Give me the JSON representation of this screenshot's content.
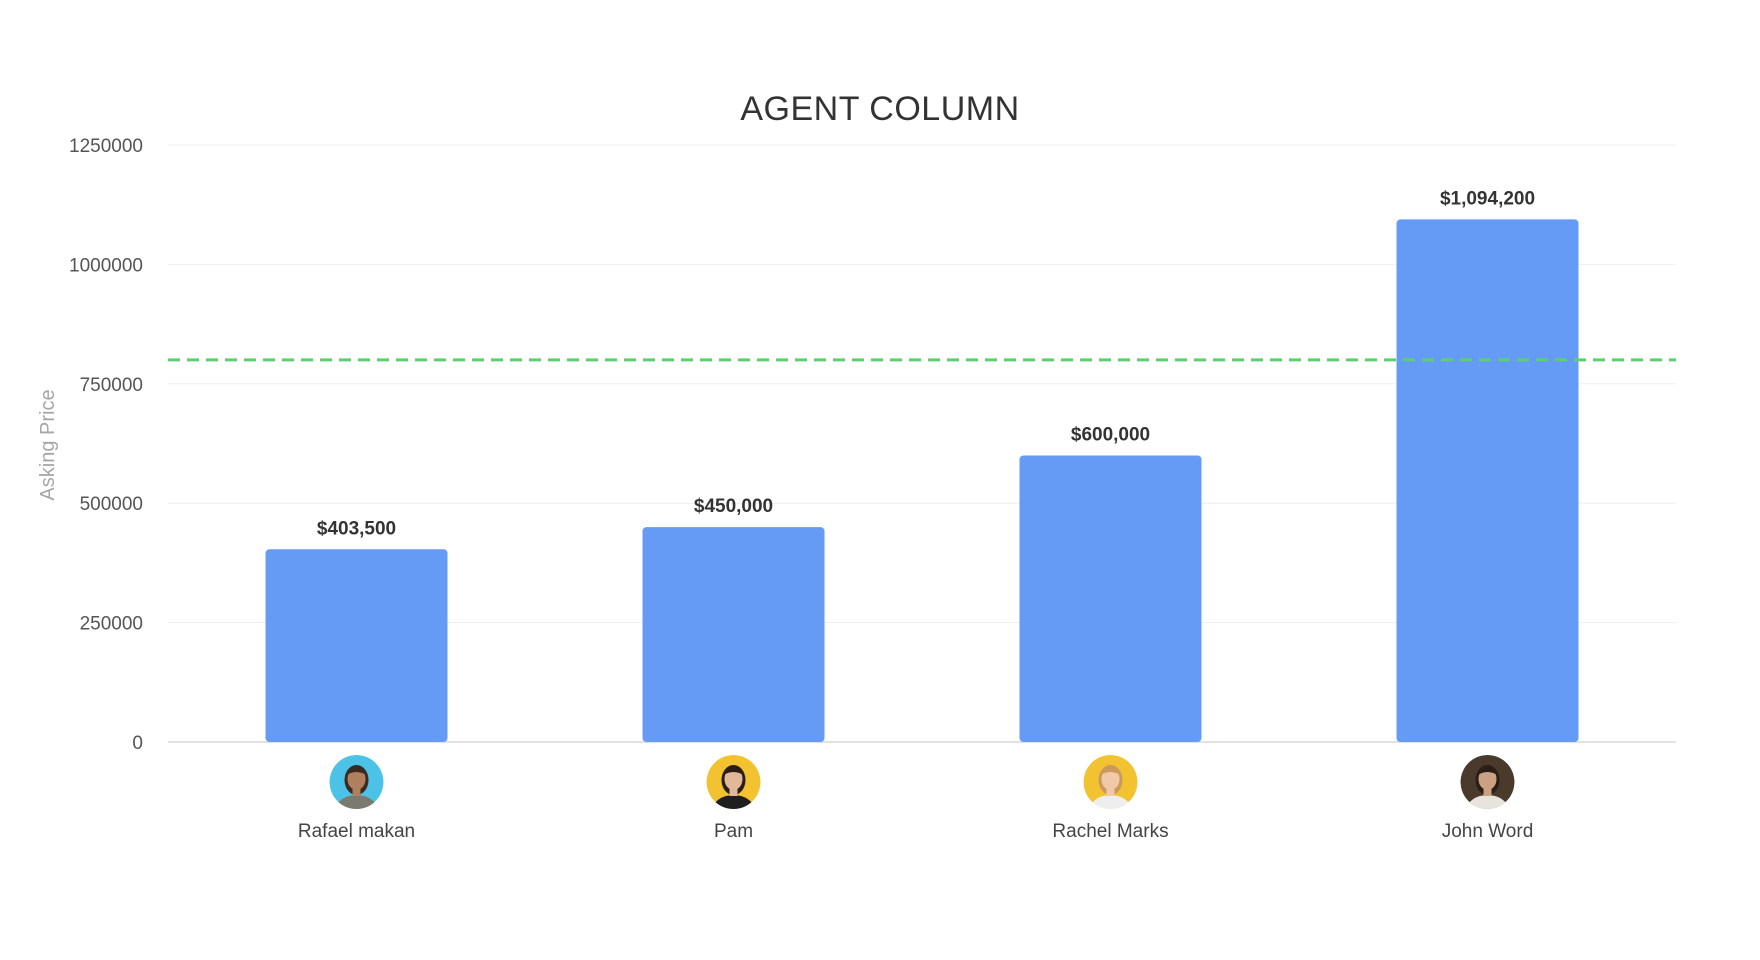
{
  "chart_data": {
    "type": "bar",
    "title": "AGENT COLUMN",
    "ylabel": "Asking Price",
    "xlabel": "",
    "categories": [
      "Rafael makan",
      "Pam",
      "Rachel Marks",
      "John Word"
    ],
    "values": [
      403500,
      450000,
      600000,
      1094200
    ],
    "data_labels": [
      "$403,500",
      "$450,000",
      "$600,000",
      "$1,094,200"
    ],
    "ylim": [
      0,
      1250000
    ],
    "yticks": [
      0,
      250000,
      500000,
      750000,
      1000000,
      1250000
    ],
    "ytick_labels": [
      "0",
      "250000",
      "500000",
      "750000",
      "1000000",
      "1250000"
    ],
    "reference_line": {
      "value": 800000,
      "style": "dashed",
      "color": "#5ccf70"
    },
    "grid": true,
    "legend": "none",
    "bar_color": "#659bf5",
    "avatars": [
      {
        "icon": "avatar-man-beard-icon",
        "bg": "#4cc3e6",
        "skin": "#b07f5e",
        "hair": "#3a2a20",
        "shirt": "#7a7a6e"
      },
      {
        "icon": "avatar-woman-dark-hair-icon",
        "bg": "#f2c230",
        "skin": "#e2b89a",
        "hair": "#2b1d16",
        "shirt": "#1f1f1f"
      },
      {
        "icon": "avatar-woman-blonde-icon",
        "bg": "#f2c230",
        "skin": "#f0c9a8",
        "hair": "#c99a5b",
        "shirt": "#eeeeee"
      },
      {
        "icon": "avatar-man-sunglasses-icon",
        "bg": "#4a3a2c",
        "skin": "#caa283",
        "hair": "#2a1e16",
        "shirt": "#e8e4dc"
      }
    ]
  }
}
